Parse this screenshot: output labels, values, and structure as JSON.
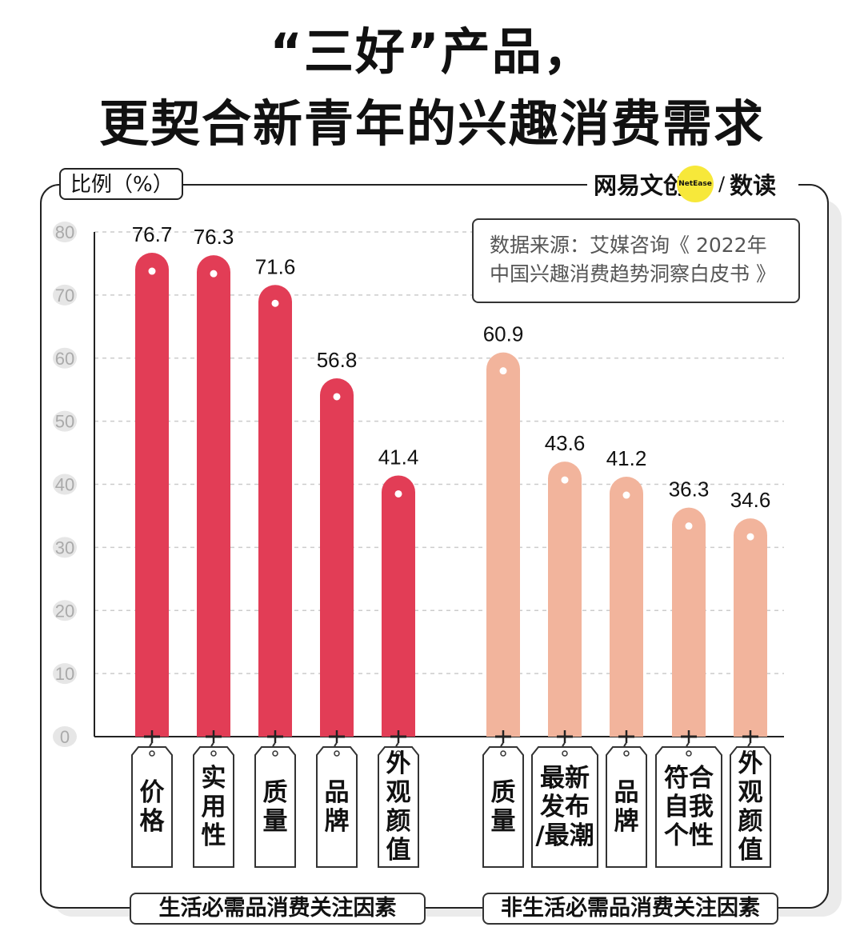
{
  "title_line1": "“三好”产品，",
  "title_line2": "更契合新青年的兴趣消费需求",
  "ylabel": "比例（%）",
  "brand": {
    "name": "网易文创",
    "mark": "NetEase",
    "slash": "/",
    "sub": "数读"
  },
  "source_line1": "数据来源：艾媒咨询《 2022年",
  "source_line2": "中国兴趣消费趋势洞察白皮书 》",
  "colors": {
    "group1": "#e23d56",
    "group2": "#f2b49c",
    "grid": "#cccccc"
  },
  "chart_data": {
    "type": "bar",
    "ylabel": "比例（%）",
    "ylim": [
      0,
      80
    ],
    "yticks": [
      0,
      10,
      20,
      30,
      40,
      50,
      60,
      70,
      80
    ],
    "grid": true,
    "groups": [
      {
        "name": "生活必需品消费关注因素",
        "color": "#e23d56",
        "categories": [
          "价格",
          "实用性",
          "质量",
          "品牌",
          "外观颜值"
        ],
        "values": [
          76.7,
          76.3,
          71.6,
          56.8,
          41.4
        ]
      },
      {
        "name": "非生活必需品消费关注因素",
        "color": "#f2b49c",
        "categories": [
          "质量",
          "最新发布/最潮",
          "品牌",
          "符合自我个性",
          "外观颜值"
        ],
        "values": [
          60.9,
          43.6,
          41.2,
          36.3,
          34.6
        ]
      }
    ]
  }
}
